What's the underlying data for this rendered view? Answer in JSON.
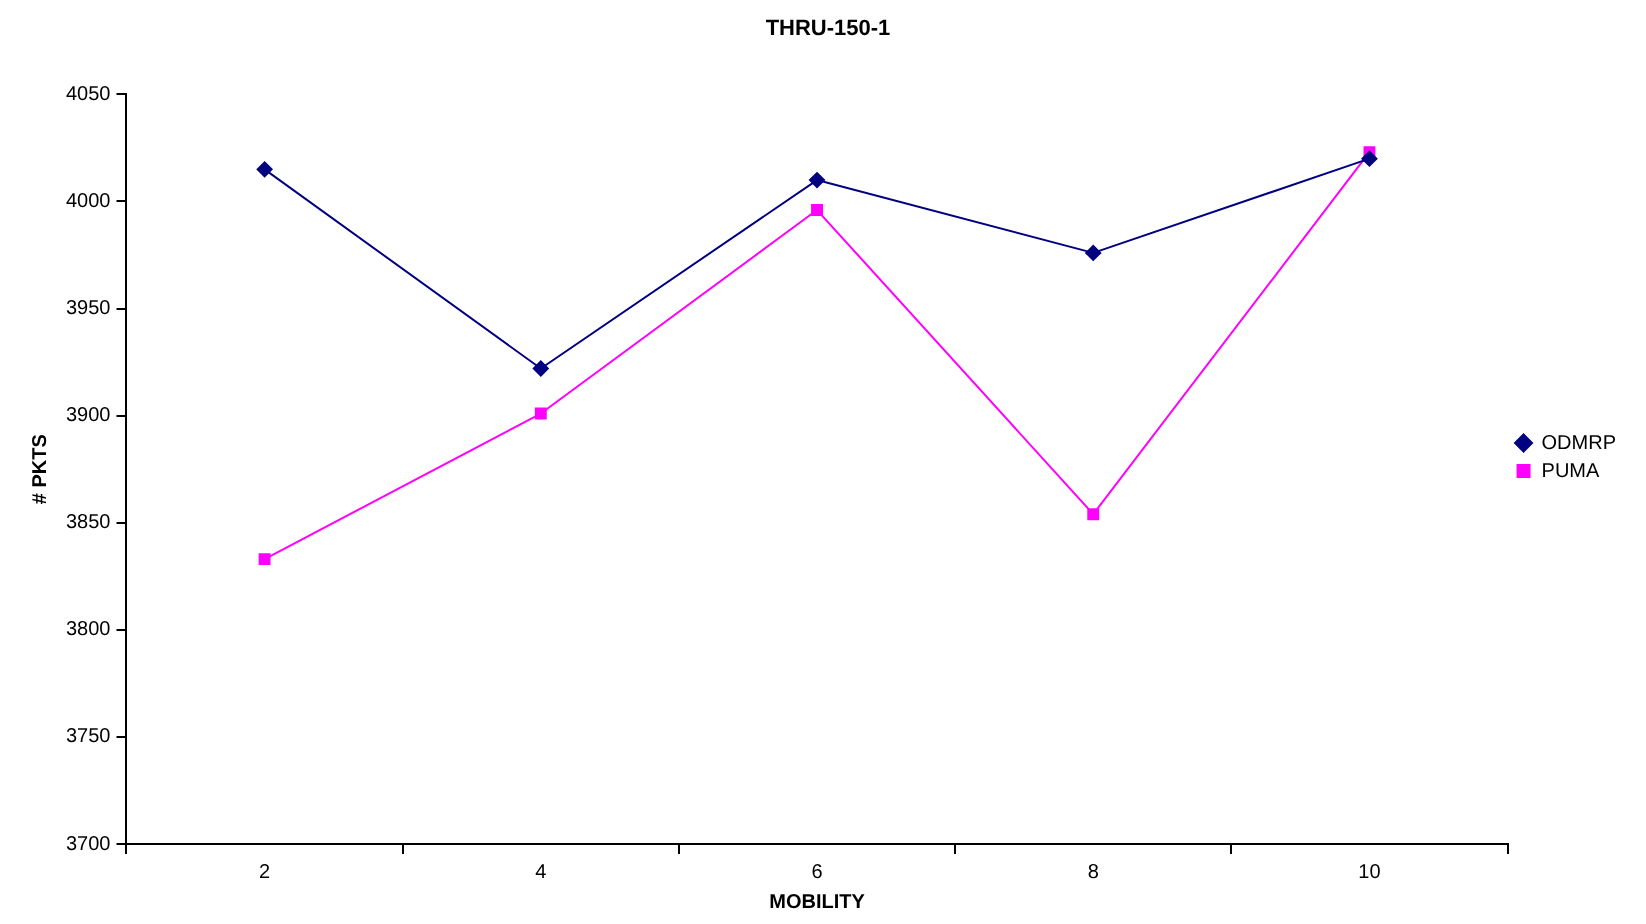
{
  "chart_data": {
    "type": "line",
    "title": "THRU-150-1",
    "xlabel": "MOBILITY",
    "ylabel": "# PKTS",
    "categories": [
      "2",
      "4",
      "6",
      "8",
      "10"
    ],
    "series": [
      {
        "name": "ODMRP",
        "color": "#000080",
        "marker": "diamond",
        "values": [
          4015,
          3922,
          4010,
          3976,
          4020
        ]
      },
      {
        "name": "PUMA",
        "color": "#ff00ff",
        "marker": "square",
        "values": [
          3833,
          3901,
          3996,
          3854,
          4023
        ]
      }
    ],
    "ylim": [
      3700,
      4050
    ],
    "yticks": [
      3700,
      3750,
      3800,
      3850,
      3900,
      3950,
      4000,
      4050
    ],
    "grid": false,
    "legend": "right",
    "line_style": "solid"
  }
}
